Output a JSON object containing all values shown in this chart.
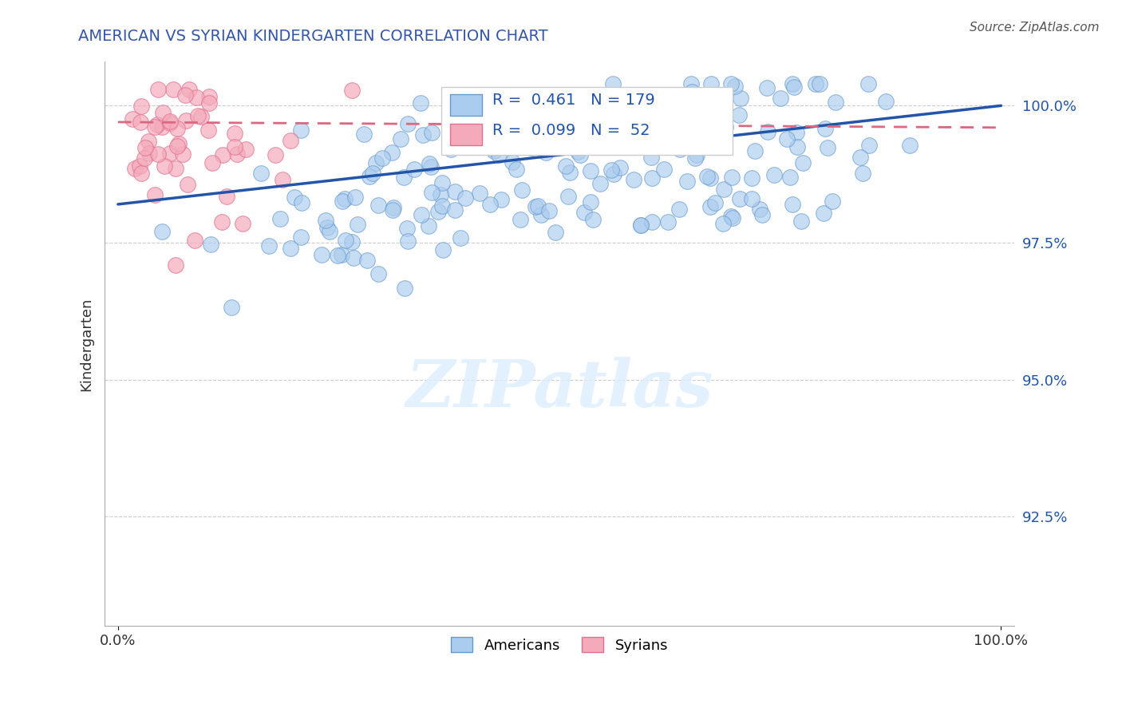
{
  "title": "AMERICAN VS SYRIAN KINDERGARTEN CORRELATION CHART",
  "source": "Source: ZipAtlas.com",
  "ylabel": "Kindergarten",
  "x_min": 0.0,
  "x_max": 1.0,
  "y_min": 0.905,
  "y_max": 1.008,
  "y_ticks": [
    0.925,
    0.95,
    0.975,
    1.0
  ],
  "y_tick_labels": [
    "92.5%",
    "95.0%",
    "97.5%",
    "100.0%"
  ],
  "x_tick_labels": [
    "0.0%",
    "100.0%"
  ],
  "american_R": 0.461,
  "american_N": 179,
  "syrian_R": 0.099,
  "syrian_N": 52,
  "american_color": "#aaccee",
  "american_edge": "#6699cc",
  "syrian_color": "#f4aabb",
  "syrian_edge": "#e07090",
  "trend_american_color": "#2255aa",
  "trend_syrian_color": "#dd6680",
  "background_color": "#ffffff",
  "grid_color": "#cccccc",
  "title_color": "#3355aa",
  "watermark_color": "#ddeeff",
  "legend_color": "#2255aa"
}
